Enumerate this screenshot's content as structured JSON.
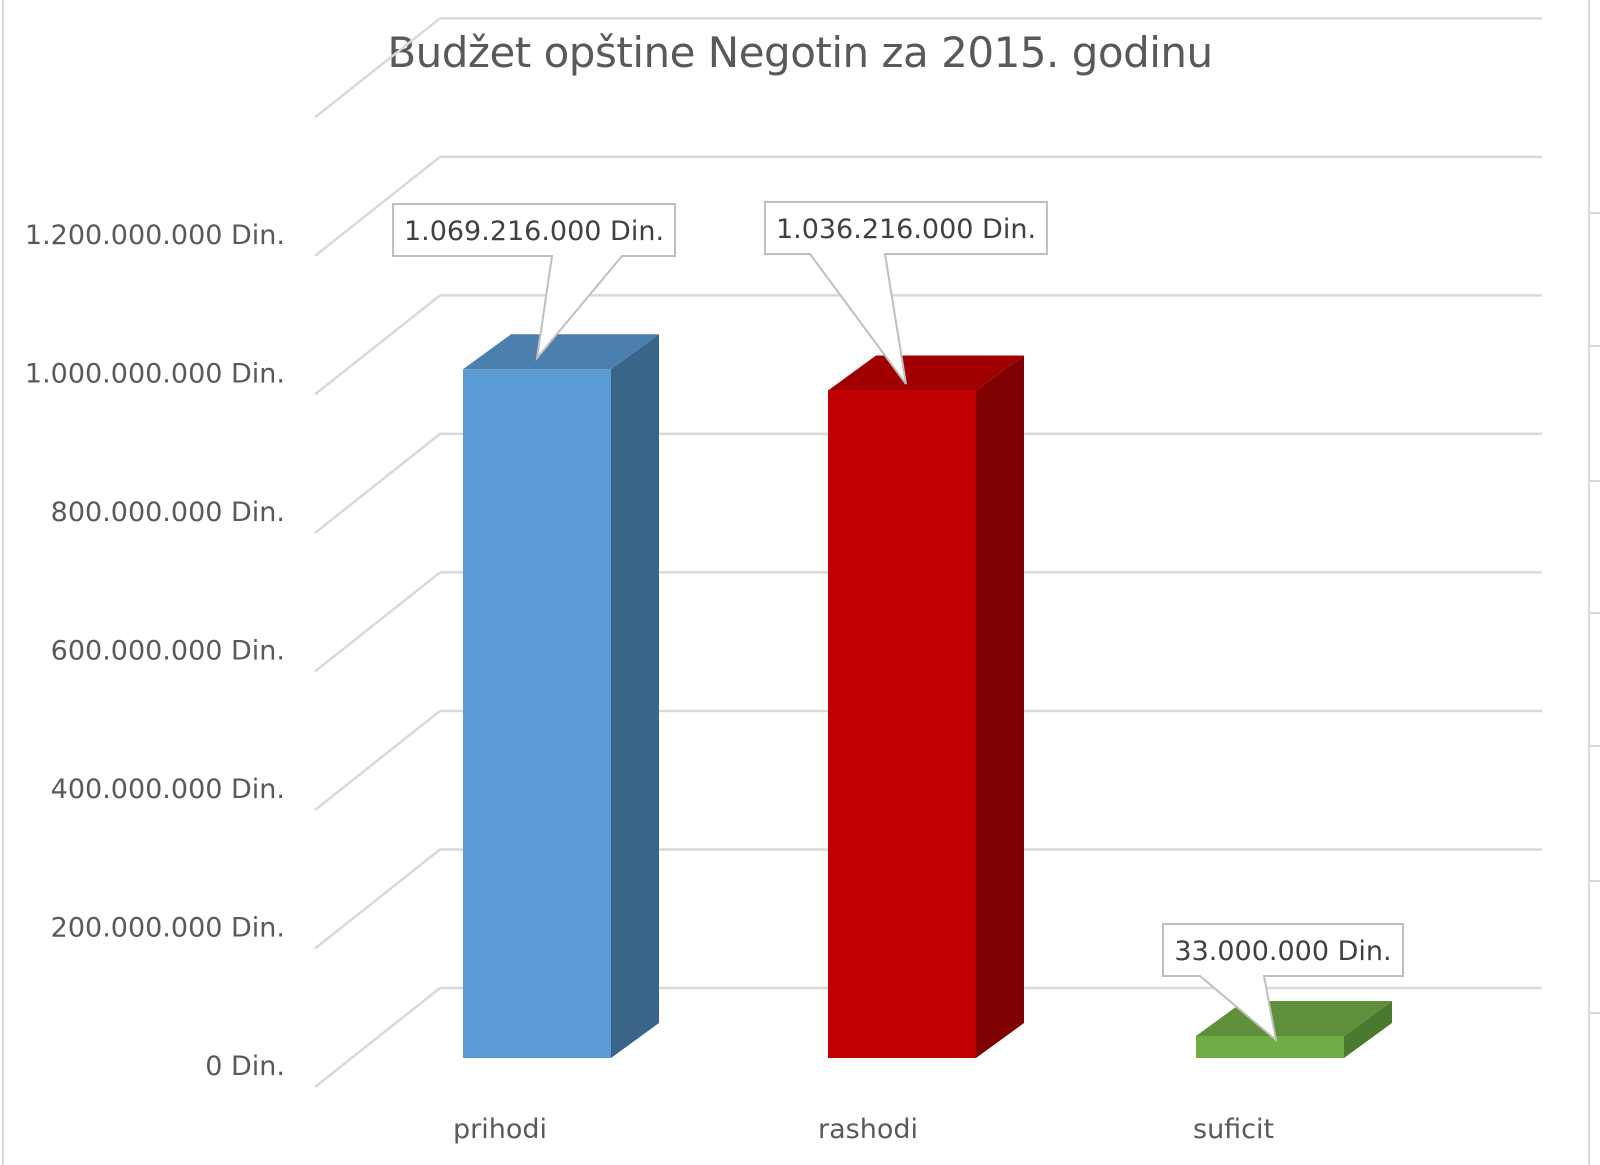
{
  "chart_data": {
    "type": "bar",
    "title": "Budžet opštine Negotin za 2015. godinu",
    "categories": [
      "prihodi",
      "rashodi",
      "suficit"
    ],
    "values": [
      1069216000,
      1036216000,
      33000000
    ],
    "data_labels": [
      "1.069.216.000 Din.",
      "1.036.216.000 Din.",
      "33.000.000 Din."
    ],
    "colors": {
      "front": [
        "#5b9bd5",
        "#c00000",
        "#70ad47"
      ],
      "side": [
        "#3a6488",
        "#7f0000",
        "#4a7a2e"
      ],
      "top": [
        "#4a7fae",
        "#a00000",
        "#5e8f3a"
      ]
    },
    "ylim": [
      0,
      1200000000
    ],
    "y_ticks": [
      0,
      200000000,
      400000000,
      600000000,
      800000000,
      1000000000,
      1200000000
    ],
    "y_tick_labels": [
      "0 Din.",
      "200.000.000 Din.",
      "400.000.000 Din.",
      "600.000.000 Din.",
      "800.000.000 Din.",
      "1.000.000.000 Din.",
      "1.200.000.000 Din."
    ],
    "xlabel": "",
    "ylabel": "",
    "grid": true,
    "legend": "none",
    "style": "3d-column"
  }
}
